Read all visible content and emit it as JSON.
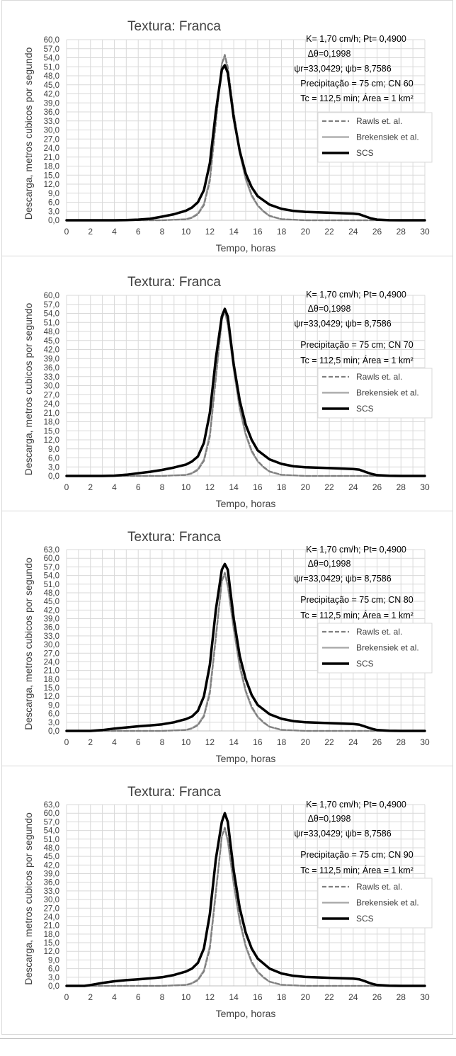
{
  "colors": {
    "rawls": "#7f7f7f",
    "brakensiek": "#a6a6a6",
    "scs": "#000000",
    "grid": "#d9d9d9"
  },
  "chart_data": [
    {
      "type": "line",
      "title": "Textura: Franca",
      "xlabel": "Tempo, horas",
      "ylabel": "Descarga, metros cubicos por segundo",
      "xlim": [
        0,
        30
      ],
      "ylim": [
        0,
        60
      ],
      "xticks": [
        0,
        2,
        4,
        6,
        8,
        10,
        12,
        14,
        16,
        18,
        20,
        22,
        24,
        26,
        28,
        30
      ],
      "ystep": 3,
      "grid": true,
      "legend_position": "right",
      "annotations": [
        "K= 1,70 cm/h; Pt= 0,4900",
        "Δθ=0,1998",
        "ψr=33,0429;  ψb= 8,7586",
        "Precipitação = 75 cm; CN 60",
        "Tc = 112,5 min; Área = 1 km²"
      ],
      "series": [
        {
          "name": "Rawls et. al.",
          "style": "dashed",
          "x": [
            0,
            8,
            10,
            10.5,
            11,
            11.5,
            12,
            12.5,
            13,
            13.25,
            13.5,
            14,
            14.5,
            15,
            15.5,
            16,
            16.5,
            17,
            18,
            20,
            30
          ],
          "y": [
            0,
            0,
            0.3,
            0.8,
            2,
            5,
            13,
            32,
            52,
            55,
            51,
            36,
            23,
            14,
            8.5,
            5,
            3,
            1.5,
            0.4,
            0,
            0
          ]
        },
        {
          "name": "Brekensiek et al.",
          "style": "solid",
          "x": [
            0,
            8,
            10,
            10.5,
            11,
            11.5,
            12,
            12.5,
            13,
            13.25,
            13.5,
            14,
            14.5,
            15,
            15.5,
            16,
            16.5,
            17,
            18,
            20,
            30
          ],
          "y": [
            0,
            0,
            0.4,
            1,
            2.3,
            5.5,
            14,
            33,
            52,
            54.5,
            50,
            35,
            22,
            13.5,
            8,
            4.8,
            2.8,
            1.4,
            0.3,
            0,
            0
          ]
        },
        {
          "name": "SCS",
          "style": "solid-bold",
          "x": [
            0,
            4,
            5,
            6,
            7,
            8,
            9,
            10,
            10.5,
            11,
            11.5,
            12,
            12.5,
            13,
            13.25,
            13.5,
            14,
            14.5,
            15,
            15.5,
            16,
            17,
            18,
            19,
            20,
            22,
            24,
            24.5,
            25,
            25.5,
            26,
            27,
            28,
            30
          ],
          "y": [
            0,
            0,
            0.05,
            0.2,
            0.5,
            1.2,
            2,
            3.2,
            4.2,
            6,
            10,
            19,
            36,
            50,
            51.5,
            49,
            34,
            23,
            15.5,
            11,
            8,
            5.2,
            3.8,
            3.1,
            2.8,
            2.5,
            2.2,
            2,
            1.3,
            0.6,
            0.2,
            0.03,
            0,
            0
          ]
        }
      ]
    },
    {
      "type": "line",
      "title": "Textura: Franca",
      "xlabel": "Tempo, horas",
      "ylabel": "Descarga, metros cubicos por segundo",
      "xlim": [
        0,
        30
      ],
      "ylim": [
        0,
        60
      ],
      "xticks": [
        0,
        2,
        4,
        6,
        8,
        10,
        12,
        14,
        16,
        18,
        20,
        22,
        24,
        26,
        28,
        30
      ],
      "ystep": 3,
      "grid": true,
      "legend_position": "right",
      "annotations": [
        "K= 1,70 cm/h; Pt= 0,4900",
        "Δθ=0,1998",
        "ψr=33,0429;  ψb= 8,7586",
        "Precipitação = 75 cm; CN 70",
        "Tc = 112,5 min; Área = 1 km²"
      ],
      "series": [
        {
          "name": "Rawls et. al.",
          "style": "dashed",
          "x": [
            0,
            8,
            10,
            10.5,
            11,
            11.5,
            12,
            12.5,
            13,
            13.25,
            13.5,
            14,
            14.5,
            15,
            15.5,
            16,
            16.5,
            17,
            18,
            20,
            30
          ],
          "y": [
            0,
            0,
            0.3,
            0.8,
            2,
            5,
            13,
            32,
            52,
            55,
            51,
            36,
            23,
            14,
            8.5,
            5,
            3,
            1.5,
            0.4,
            0,
            0
          ]
        },
        {
          "name": "Brekensiek et al.",
          "style": "solid",
          "x": [
            0,
            8,
            10,
            10.5,
            11,
            11.5,
            12,
            12.5,
            13,
            13.25,
            13.5,
            14,
            14.5,
            15,
            15.5,
            16,
            16.5,
            17,
            18,
            20,
            30
          ],
          "y": [
            0,
            0,
            0.4,
            1,
            2.3,
            5.5,
            14,
            33,
            52,
            54.5,
            50,
            35,
            22,
            13.5,
            8,
            4.8,
            2.8,
            1.4,
            0.3,
            0,
            0
          ]
        },
        {
          "name": "SCS",
          "style": "solid-bold",
          "x": [
            0,
            3,
            4,
            5,
            6,
            7,
            8,
            9,
            10,
            10.5,
            11,
            11.5,
            12,
            12.5,
            13,
            13.25,
            13.5,
            14,
            14.5,
            15,
            15.5,
            16,
            17,
            18,
            19,
            20,
            22,
            24,
            24.5,
            25,
            25.5,
            26,
            27,
            28,
            30
          ],
          "y": [
            0,
            0,
            0.1,
            0.4,
            0.9,
            1.4,
            2,
            2.8,
            3.8,
            4.8,
            6.5,
            11,
            21,
            39,
            53,
            55.5,
            53,
            37,
            25,
            17,
            12,
            8.5,
            5.5,
            4,
            3.2,
            2.9,
            2.6,
            2.3,
            2.1,
            1.4,
            0.7,
            0.25,
            0.04,
            0,
            0
          ]
        }
      ]
    },
    {
      "type": "line",
      "title": "Textura: Franca",
      "xlabel": "Tempo, horas",
      "ylabel": "Descarga, metros cubicos por segundo",
      "xlim": [
        0,
        30
      ],
      "ylim": [
        0,
        63
      ],
      "xticks": [
        0,
        2,
        4,
        6,
        8,
        10,
        12,
        14,
        16,
        18,
        20,
        22,
        24,
        26,
        28,
        30
      ],
      "ystep": 3,
      "grid": true,
      "legend_position": "right",
      "annotations": [
        "K= 1,70 cm/h; Pt= 0,4900",
        "Δθ=0,1998",
        "ψr=33,0429;  ψb= 8,7586",
        "Precipitação = 75 cm; CN 80",
        "Tc = 112,5 min; Área = 1 km²"
      ],
      "series": [
        {
          "name": "Rawls et. al.",
          "style": "dashed",
          "x": [
            0,
            8,
            10,
            10.5,
            11,
            11.5,
            12,
            12.5,
            13,
            13.25,
            13.5,
            14,
            14.5,
            15,
            15.5,
            16,
            16.5,
            17,
            18,
            20,
            30
          ],
          "y": [
            0,
            0,
            0.3,
            0.8,
            2,
            5,
            13,
            32,
            52,
            55,
            51,
            36,
            23,
            14,
            8.5,
            5,
            3,
            1.5,
            0.4,
            0,
            0
          ]
        },
        {
          "name": "Brekensiek et al.",
          "style": "solid",
          "x": [
            0,
            8,
            10,
            10.5,
            11,
            11.5,
            12,
            12.5,
            13,
            13.25,
            13.5,
            14,
            14.5,
            15,
            15.5,
            16,
            16.5,
            17,
            18,
            20,
            30
          ],
          "y": [
            0,
            0,
            0.4,
            1,
            2.3,
            5.5,
            14,
            33,
            52,
            54.5,
            50,
            35,
            22,
            13.5,
            8,
            4.8,
            2.8,
            1.4,
            0.3,
            0,
            0
          ]
        },
        {
          "name": "SCS",
          "style": "solid-bold",
          "x": [
            0,
            2,
            3,
            4,
            5,
            6,
            7,
            8,
            9,
            10,
            10.5,
            11,
            11.5,
            12,
            12.5,
            13,
            13.25,
            13.5,
            14,
            14.5,
            15,
            15.5,
            16,
            17,
            18,
            19,
            20,
            22,
            24,
            24.5,
            25,
            25.5,
            26,
            27,
            28,
            30
          ],
          "y": [
            0,
            0,
            0.3,
            0.8,
            1.2,
            1.6,
            1.9,
            2.3,
            3,
            4.1,
            5,
            7,
            12,
            23,
            42,
            56,
            58,
            56,
            39,
            26,
            18,
            12.5,
            9,
            5.8,
            4.2,
            3.4,
            3,
            2.7,
            2.4,
            2.2,
            1.5,
            0.8,
            0.3,
            0.05,
            0,
            0
          ]
        }
      ]
    },
    {
      "type": "line",
      "title": "Textura: Franca",
      "xlabel": "Tempo, horas",
      "ylabel": "Descarga, metros cubicos por segundo",
      "xlim": [
        0,
        30
      ],
      "ylim": [
        0,
        63
      ],
      "xticks": [
        0,
        2,
        4,
        6,
        8,
        10,
        12,
        14,
        16,
        18,
        20,
        22,
        24,
        26,
        28,
        30
      ],
      "ystep": 3,
      "grid": true,
      "legend_position": "right",
      "annotations": [
        "K= 1,70 cm/h; Pt= 0,4900",
        "Δθ=0,1998",
        "ψr=33,0429;  ψb= 8,7586",
        "Precipitação = 75 cm; CN 90",
        "Tc = 112,5 min; Área = 1 km²"
      ],
      "series": [
        {
          "name": "Rawls et. al.",
          "style": "dashed",
          "x": [
            0,
            8,
            10,
            10.5,
            11,
            11.5,
            12,
            12.5,
            13,
            13.25,
            13.5,
            14,
            14.5,
            15,
            15.5,
            16,
            16.5,
            17,
            18,
            20,
            30
          ],
          "y": [
            0,
            0,
            0.3,
            0.8,
            2,
            5,
            13,
            32,
            52,
            55,
            51,
            36,
            23,
            14,
            8.5,
            5,
            3,
            1.5,
            0.4,
            0,
            0
          ]
        },
        {
          "name": "Brekensiek et al.",
          "style": "solid",
          "x": [
            0,
            8,
            10,
            10.5,
            11,
            11.5,
            12,
            12.5,
            13,
            13.25,
            13.5,
            14,
            14.5,
            15,
            15.5,
            16,
            16.5,
            17,
            18,
            20,
            30
          ],
          "y": [
            0,
            0,
            0.4,
            1,
            2.3,
            5.5,
            14,
            33,
            52,
            54.5,
            50,
            35,
            22,
            13.5,
            8,
            4.8,
            2.8,
            1.4,
            0.3,
            0,
            0
          ]
        },
        {
          "name": "SCS",
          "style": "solid-bold",
          "x": [
            0,
            1.5,
            2,
            3,
            4,
            5,
            6,
            7,
            8,
            9,
            10,
            10.5,
            11,
            11.5,
            12,
            12.5,
            13,
            13.25,
            13.5,
            14,
            14.5,
            15,
            15.5,
            16,
            17,
            18,
            19,
            20,
            22,
            24,
            24.5,
            25,
            25.5,
            26,
            27,
            28,
            30
          ],
          "y": [
            0,
            0,
            0.3,
            1,
            1.6,
            2,
            2.3,
            2.6,
            3,
            3.8,
            5,
            6,
            8,
            13,
            25,
            44,
            57,
            60,
            57,
            40,
            27,
            18.5,
            13,
            9.5,
            6,
            4.3,
            3.5,
            3.1,
            2.8,
            2.5,
            2.3,
            1.6,
            0.8,
            0.3,
            0.05,
            0,
            0
          ]
        }
      ]
    }
  ]
}
